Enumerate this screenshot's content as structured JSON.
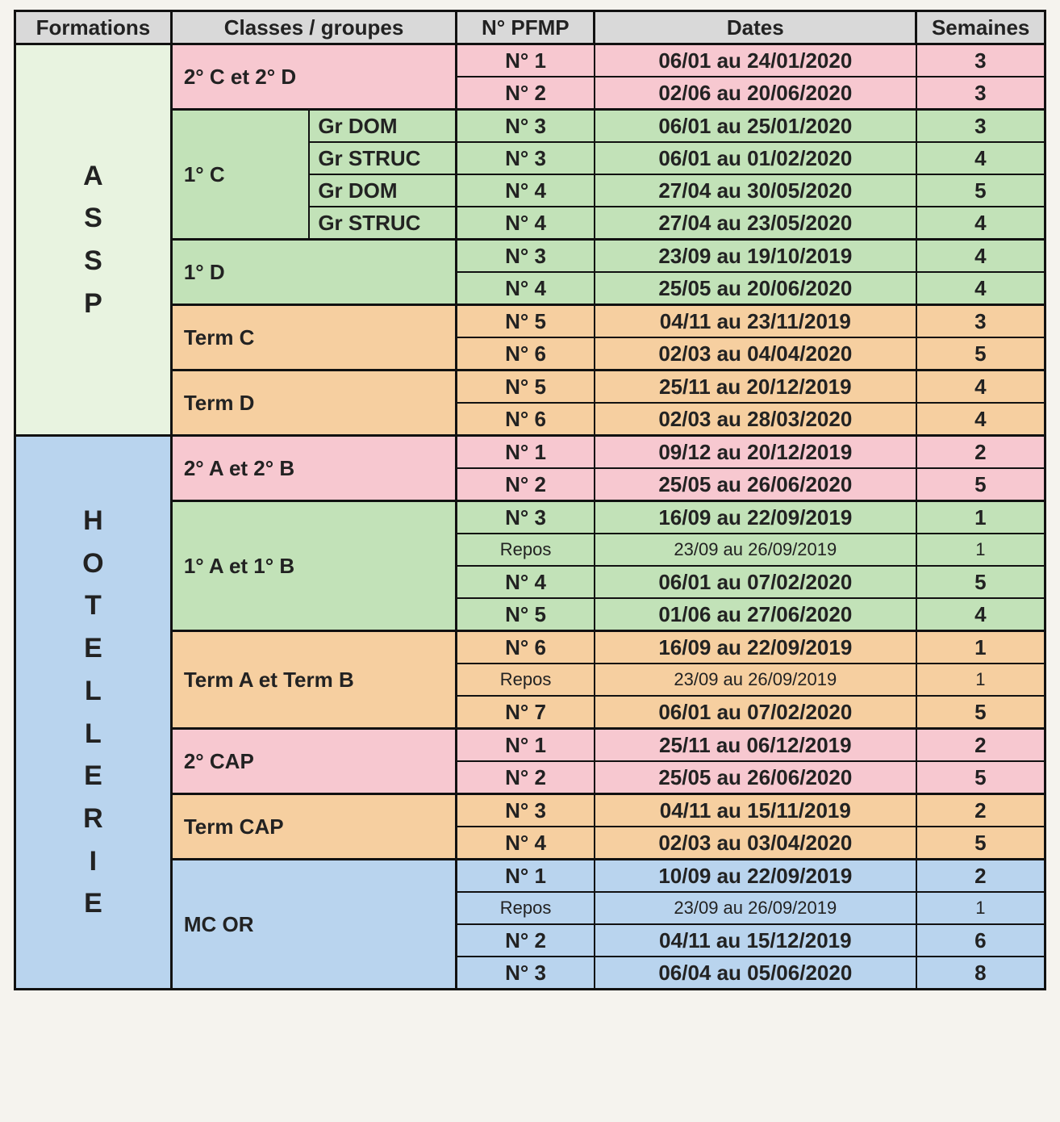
{
  "colors": {
    "header": "#d9d9d9",
    "pink": "#f7c8d0",
    "green": "#c2e2b8",
    "orange": "#f6cfa0",
    "blue": "#b9d4ee",
    "lightgreen": "#e8f3e0"
  },
  "header": {
    "formations": "Formations",
    "classes": "Classes / groupes",
    "pfmp": "N° PFMP",
    "dates": "Dates",
    "weeks": "Semaines"
  },
  "formations": [
    {
      "label": "A S S P",
      "letters": [
        "A",
        "S",
        "S",
        "P"
      ],
      "bg": "lightgreen"
    },
    {
      "label": "H O T E L L E R I E",
      "letters": [
        "H",
        "O",
        "T",
        "E",
        "L",
        "L",
        "E",
        "R",
        "I",
        "E"
      ],
      "bg": "blue"
    }
  ],
  "blocks": [
    {
      "formation": 0,
      "bg": "pink",
      "class_label": "2° C et 2° D",
      "sub": null,
      "rows": [
        {
          "pfmp": "N° 1",
          "dates": "06/01 au 24/01/2020",
          "weeks": "3"
        },
        {
          "pfmp": "N° 2",
          "dates": "02/06 au 20/06/2020",
          "weeks": "3"
        }
      ]
    },
    {
      "formation": 0,
      "bg": "green",
      "class_label": "1° C",
      "sub": [
        "Gr DOM",
        "Gr STRUC",
        "Gr DOM",
        "Gr STRUC"
      ],
      "rows": [
        {
          "pfmp": "N° 3",
          "dates": "06/01 au 25/01/2020",
          "weeks": "3"
        },
        {
          "pfmp": "N° 3",
          "dates": "06/01 au 01/02/2020",
          "weeks": "4"
        },
        {
          "pfmp": "N° 4",
          "dates": "27/04 au 30/05/2020",
          "weeks": "5"
        },
        {
          "pfmp": "N° 4",
          "dates": "27/04 au 23/05/2020",
          "weeks": "4"
        }
      ]
    },
    {
      "formation": 0,
      "bg": "green",
      "class_label": "1° D",
      "sub": null,
      "rows": [
        {
          "pfmp": "N° 3",
          "dates": "23/09 au 19/10/2019",
          "weeks": "4"
        },
        {
          "pfmp": "N° 4",
          "dates": "25/05 au 20/06/2020",
          "weeks": "4"
        }
      ]
    },
    {
      "formation": 0,
      "bg": "orange",
      "class_label": "Term C",
      "sub": null,
      "rows": [
        {
          "pfmp": "N° 5",
          "dates": "04/11 au 23/11/2019",
          "weeks": "3"
        },
        {
          "pfmp": "N° 6",
          "dates": "02/03 au 04/04/2020",
          "weeks": "5"
        }
      ]
    },
    {
      "formation": 0,
      "bg": "orange",
      "class_label": "Term D",
      "sub": null,
      "rows": [
        {
          "pfmp": "N° 5",
          "dates": "25/11 au 20/12/2019",
          "weeks": "4"
        },
        {
          "pfmp": "N° 6",
          "dates": "02/03 au 28/03/2020",
          "weeks": "4"
        }
      ]
    },
    {
      "formation": 1,
      "bg": "pink",
      "class_label": "2° A et 2° B",
      "sub": null,
      "rows": [
        {
          "pfmp": "N° 1",
          "dates": "09/12 au 20/12/2019",
          "weeks": "2"
        },
        {
          "pfmp": "N° 2",
          "dates": "25/05 au 26/06/2020",
          "weeks": "5"
        }
      ]
    },
    {
      "formation": 1,
      "bg": "green",
      "class_label": "1° A et 1° B",
      "sub": null,
      "rows": [
        {
          "pfmp": "N° 3",
          "dates": "16/09 au 22/09/2019",
          "weeks": "1"
        },
        {
          "pfmp": "Repos",
          "dates": "23/09 au 26/09/2019",
          "weeks": "1",
          "light": true
        },
        {
          "pfmp": "N° 4",
          "dates": "06/01 au 07/02/2020",
          "weeks": "5"
        },
        {
          "pfmp": "N° 5",
          "dates": "01/06 au 27/06/2020",
          "weeks": "4"
        }
      ]
    },
    {
      "formation": 1,
      "bg": "orange",
      "class_label": "Term A et Term B",
      "sub": null,
      "rows": [
        {
          "pfmp": "N° 6",
          "dates": "16/09 au 22/09/2019",
          "weeks": "1"
        },
        {
          "pfmp": "Repos",
          "dates": "23/09 au 26/09/2019",
          "weeks": "1",
          "light": true
        },
        {
          "pfmp": "N° 7",
          "dates": "06/01 au 07/02/2020",
          "weeks": "5"
        }
      ]
    },
    {
      "formation": 1,
      "bg": "pink",
      "class_label": "2° CAP",
      "sub": null,
      "rows": [
        {
          "pfmp": "N° 1",
          "dates": "25/11 au 06/12/2019",
          "weeks": "2"
        },
        {
          "pfmp": "N° 2",
          "dates": "25/05 au 26/06/2020",
          "weeks": "5"
        }
      ]
    },
    {
      "formation": 1,
      "bg": "orange",
      "class_label": "Term CAP",
      "sub": null,
      "rows": [
        {
          "pfmp": "N° 3",
          "dates": "04/11 au 15/11/2019",
          "weeks": "2"
        },
        {
          "pfmp": "N° 4",
          "dates": "02/03 au 03/04/2020",
          "weeks": "5"
        }
      ]
    },
    {
      "formation": 1,
      "bg": "blue",
      "class_label": "MC OR",
      "sub": null,
      "rows": [
        {
          "pfmp": "N° 1",
          "dates": "10/09 au 22/09/2019",
          "weeks": "2"
        },
        {
          "pfmp": "Repos",
          "dates": "23/09 au 26/09/2019",
          "weeks": "1",
          "light": true
        },
        {
          "pfmp": "N° 2",
          "dates": "04/11 au 15/12/2019",
          "weeks": "6"
        },
        {
          "pfmp": "N° 3",
          "dates": "06/04 au 05/06/2020",
          "weeks": "8"
        }
      ]
    }
  ]
}
